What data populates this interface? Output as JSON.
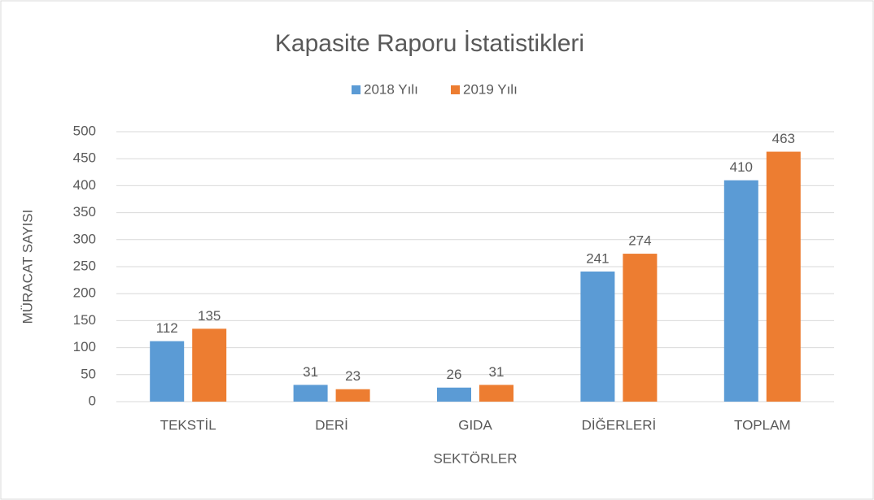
{
  "chart_data": {
    "type": "bar",
    "title": "Kapasite Raporu İstatistikleri",
    "x_label": "SEKTÖRLER",
    "y_label": "MÜRACAT SAYISI",
    "categories": [
      "TEKSTİL",
      "DERİ",
      "GIDA",
      "DİĞERLERİ",
      "TOPLAM"
    ],
    "series": [
      {
        "name": "2018 Yılı",
        "color": "#5b9bd5",
        "values": [
          112,
          31,
          26,
          241,
          410
        ]
      },
      {
        "name": "2019 Yılı",
        "color": "#ed7d31",
        "values": [
          135,
          23,
          31,
          274,
          463
        ]
      }
    ],
    "ylim": [
      0,
      500
    ],
    "yticks": [
      0,
      50,
      100,
      150,
      200,
      250,
      300,
      350,
      400,
      450,
      500
    ],
    "grid": true,
    "legend": "top"
  }
}
